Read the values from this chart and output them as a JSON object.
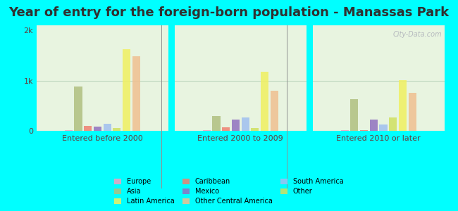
{
  "title": "Year of entry for the foreign-born population - Manassas Park",
  "groups": [
    "Entered before 2000",
    "Entered 2000 to 2009",
    "Entered 2010 or later"
  ],
  "colors": {
    "Europe": "#f4a0c0",
    "Asia": "#b0c080",
    "Caribbean": "#f08070",
    "Mexico": "#9070c0",
    "South America": "#a0c0f0",
    "Other": "#d0e060",
    "Latin America": "#f0f060",
    "Other Central America": "#f0c090"
  },
  "values": {
    "Entered before 2000": {
      "Europe": 20,
      "Asia": 880,
      "Caribbean": 100,
      "Mexico": 80,
      "South America": 140,
      "Other": 60,
      "Latin America": 1620,
      "Other Central America": 1480
    },
    "Entered 2000 to 2009": {
      "Europe": 10,
      "Asia": 290,
      "Caribbean": 70,
      "Mexico": 220,
      "South America": 260,
      "Other": 60,
      "Latin America": 1180,
      "Other Central America": 800
    },
    "Entered 2010 or later": {
      "Europe": 20,
      "Asia": 630,
      "Caribbean": 10,
      "Mexico": 220,
      "South America": 120,
      "Other": 260,
      "Latin America": 1010,
      "Other Central America": 760
    }
  },
  "ylim": [
    0,
    2100
  ],
  "yticks": [
    0,
    1000,
    2000
  ],
  "ytick_labels": [
    "0",
    "1k",
    "2k"
  ],
  "background_color": "#00ffff",
  "grid_color": "#c0d8c0",
  "title_fontsize": 13,
  "watermark": "City-Data.com",
  "bar_order": [
    "Europe",
    "Asia",
    "Caribbean",
    "Mexico",
    "South America",
    "Other",
    "Latin America",
    "Other Central America"
  ],
  "legend_items": [
    [
      "Europe",
      "#f4a0c0"
    ],
    [
      "Asia",
      "#b0c080"
    ],
    [
      "Latin America",
      "#f0f060"
    ],
    [
      "Caribbean",
      "#f08070"
    ],
    [
      "Mexico",
      "#9070c0"
    ],
    [
      "Other Central America",
      "#f0c090"
    ],
    [
      "South America",
      "#a0c0f0"
    ],
    [
      "Other",
      "#d0e060"
    ]
  ]
}
